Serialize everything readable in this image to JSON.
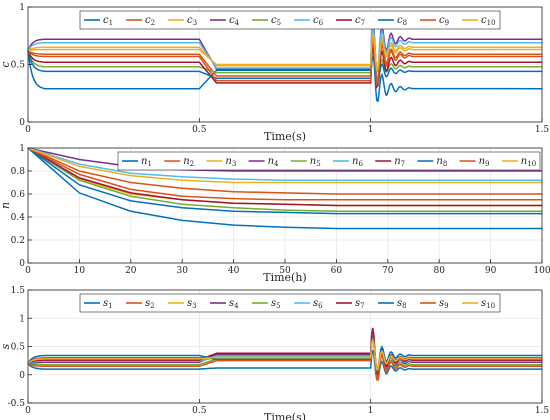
{
  "chart_data": [
    {
      "type": "line",
      "ylabel": "c",
      "xlabel": "Time(s)",
      "xlim": [
        0,
        1.5
      ],
      "ylim": [
        0,
        1
      ],
      "xticks": [
        0,
        0.5,
        1,
        1.5
      ],
      "xtick_labels": [
        "0",
        "0.5",
        "1",
        "1.5"
      ],
      "yticks": [
        0,
        0.5,
        1
      ],
      "ytick_labels": [
        "0",
        "0.5",
        "1"
      ],
      "grid": true,
      "legend": "top, horizontal",
      "series": [
        {
          "name": "c",
          "sub": "1",
          "color": "#0072BD",
          "values": [
            0.62,
            0.29,
            0.29,
            0.45,
            0.29,
            0.29
          ]
        },
        {
          "name": "c",
          "sub": "2",
          "color": "#D95319",
          "values": [
            0.62,
            0.59,
            0.59,
            0.4,
            0.59,
            0.59
          ]
        },
        {
          "name": "c",
          "sub": "3",
          "color": "#EDB120",
          "values": [
            0.62,
            0.65,
            0.65,
            0.49,
            0.65,
            0.65
          ]
        },
        {
          "name": "c",
          "sub": "4",
          "color": "#7E2F8E",
          "values": [
            0.62,
            0.72,
            0.72,
            0.46,
            0.72,
            0.72
          ]
        },
        {
          "name": "c",
          "sub": "5",
          "color": "#77AC30",
          "values": [
            0.62,
            0.48,
            0.48,
            0.43,
            0.48,
            0.48
          ]
        },
        {
          "name": "c",
          "sub": "6",
          "color": "#4DBEEE",
          "values": [
            0.62,
            0.69,
            0.69,
            0.47,
            0.69,
            0.69
          ]
        },
        {
          "name": "c",
          "sub": "7",
          "color": "#A2142F",
          "values": [
            0.62,
            0.52,
            0.52,
            0.34,
            0.52,
            0.52
          ]
        },
        {
          "name": "c",
          "sub": "8",
          "color": "#0072BD",
          "values": [
            0.62,
            0.44,
            0.44,
            0.38,
            0.44,
            0.44
          ]
        },
        {
          "name": "c",
          "sub": "9",
          "color": "#D95319",
          "values": [
            0.62,
            0.57,
            0.57,
            0.36,
            0.57,
            0.57
          ]
        },
        {
          "name": "c",
          "sub": "10",
          "color": "#EDB120",
          "values": [
            0.62,
            0.63,
            0.63,
            0.5,
            0.63,
            0.63
          ]
        }
      ],
      "x": [
        0,
        0.05,
        0.5,
        0.55,
        1.05,
        1.5
      ]
    },
    {
      "type": "line",
      "ylabel": "n",
      "xlabel": "Time(h)",
      "xlim": [
        0,
        100
      ],
      "ylim": [
        0,
        1
      ],
      "xticks": [
        0,
        10,
        20,
        30,
        40,
        50,
        60,
        70,
        80,
        90,
        100
      ],
      "xtick_labels": [
        "0",
        "10",
        "20",
        "30",
        "40",
        "50",
        "60",
        "70",
        "80",
        "90",
        "100"
      ],
      "yticks": [
        0,
        0.2,
        0.4,
        0.6,
        0.8,
        1
      ],
      "ytick_labels": [
        "0",
        "0.2",
        "0.4",
        "0.6",
        "0.8",
        "1"
      ],
      "grid": true,
      "legend": "top-right, horizontal",
      "x": [
        0,
        10,
        20,
        30,
        40,
        50,
        60,
        70,
        80,
        90,
        100
      ],
      "series": [
        {
          "name": "n",
          "sub": "1",
          "color": "#0072BD",
          "values": [
            1.0,
            0.61,
            0.45,
            0.37,
            0.33,
            0.31,
            0.3,
            0.3,
            0.3,
            0.3,
            0.3
          ]
        },
        {
          "name": "n",
          "sub": "2",
          "color": "#D95319",
          "values": [
            1.0,
            0.8,
            0.7,
            0.65,
            0.62,
            0.61,
            0.6,
            0.6,
            0.6,
            0.6,
            0.6
          ]
        },
        {
          "name": "n",
          "sub": "3",
          "color": "#EDB120",
          "values": [
            1.0,
            0.73,
            0.6,
            0.55,
            0.52,
            0.51,
            0.5,
            0.5,
            0.5,
            0.5,
            0.5
          ]
        },
        {
          "name": "n",
          "sub": "4",
          "color": "#7E2F8E",
          "values": [
            1.0,
            0.9,
            0.84,
            0.81,
            0.8,
            0.8,
            0.8,
            0.8,
            0.8,
            0.8,
            0.8
          ]
        },
        {
          "name": "n",
          "sub": "5",
          "color": "#77AC30",
          "values": [
            1.0,
            0.72,
            0.58,
            0.51,
            0.48,
            0.46,
            0.45,
            0.45,
            0.45,
            0.45,
            0.45
          ]
        },
        {
          "name": "n",
          "sub": "6",
          "color": "#4DBEEE",
          "values": [
            1.0,
            0.86,
            0.78,
            0.75,
            0.73,
            0.72,
            0.72,
            0.72,
            0.72,
            0.72,
            0.72
          ]
        },
        {
          "name": "n",
          "sub": "7",
          "color": "#A2142F",
          "values": [
            1.0,
            0.74,
            0.61,
            0.55,
            0.52,
            0.51,
            0.5,
            0.5,
            0.5,
            0.5,
            0.5
          ]
        },
        {
          "name": "n",
          "sub": "8",
          "color": "#0072BD",
          "values": [
            1.0,
            0.68,
            0.54,
            0.48,
            0.45,
            0.44,
            0.43,
            0.43,
            0.43,
            0.43,
            0.43
          ]
        },
        {
          "name": "n",
          "sub": "9",
          "color": "#D95319",
          "values": [
            1.0,
            0.77,
            0.64,
            0.58,
            0.56,
            0.55,
            0.55,
            0.55,
            0.55,
            0.55,
            0.55
          ]
        },
        {
          "name": "n",
          "sub": "10",
          "color": "#EDB120",
          "values": [
            1.0,
            0.84,
            0.76,
            0.72,
            0.7,
            0.7,
            0.7,
            0.7,
            0.7,
            0.7,
            0.7
          ]
        }
      ]
    },
    {
      "type": "line",
      "ylabel": "s",
      "xlabel": "Time(s)",
      "xlim": [
        0,
        1.5
      ],
      "ylim": [
        -0.5,
        1.5
      ],
      "xticks": [
        0,
        0.5,
        1,
        1.5
      ],
      "xtick_labels": [
        "0",
        "0.5",
        "1",
        "1.5"
      ],
      "yticks": [
        -0.5,
        0,
        0.5,
        1,
        1.5
      ],
      "ytick_labels": [
        "-0.5",
        "0",
        "0.5",
        "1",
        "1.5"
      ],
      "grid": true,
      "legend": "top, horizontal",
      "x": [
        0,
        0.05,
        0.5,
        0.55,
        1.05,
        1.5
      ],
      "series": [
        {
          "name": "s",
          "sub": "1",
          "color": "#0072BD",
          "values": [
            0.2,
            0.1,
            0.1,
            0.12,
            0.1,
            0.1
          ]
        },
        {
          "name": "s",
          "sub": "2",
          "color": "#D95319",
          "values": [
            0.2,
            0.3,
            0.3,
            0.34,
            0.3,
            0.3
          ]
        },
        {
          "name": "s",
          "sub": "3",
          "color": "#EDB120",
          "values": [
            0.2,
            0.25,
            0.25,
            0.3,
            0.25,
            0.25
          ]
        },
        {
          "name": "s",
          "sub": "4",
          "color": "#7E2F8E",
          "values": [
            0.2,
            0.22,
            0.22,
            0.36,
            0.22,
            0.22
          ]
        },
        {
          "name": "s",
          "sub": "5",
          "color": "#77AC30",
          "values": [
            0.2,
            0.18,
            0.18,
            0.28,
            0.18,
            0.18
          ]
        },
        {
          "name": "s",
          "sub": "6",
          "color": "#4DBEEE",
          "values": [
            0.2,
            0.24,
            0.24,
            0.33,
            0.24,
            0.24
          ]
        },
        {
          "name": "s",
          "sub": "7",
          "color": "#A2142F",
          "values": [
            0.2,
            0.26,
            0.26,
            0.38,
            0.26,
            0.26
          ]
        },
        {
          "name": "s",
          "sub": "8",
          "color": "#0072BD",
          "values": [
            0.2,
            0.34,
            0.34,
            0.27,
            0.34,
            0.34
          ]
        },
        {
          "name": "s",
          "sub": "9",
          "color": "#D95319",
          "values": [
            0.2,
            0.15,
            0.15,
            0.25,
            0.15,
            0.15
          ]
        },
        {
          "name": "s",
          "sub": "10",
          "color": "#EDB120",
          "values": [
            0.2,
            0.28,
            0.28,
            0.31,
            0.28,
            0.28
          ]
        }
      ]
    }
  ]
}
